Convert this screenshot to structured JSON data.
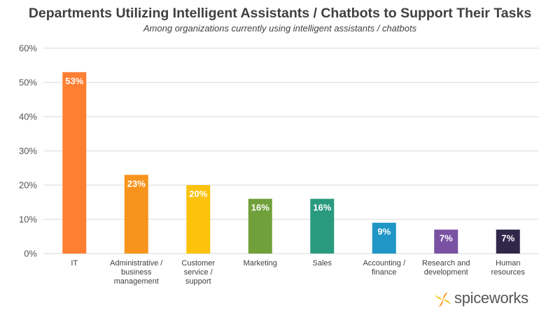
{
  "chart_data": {
    "type": "bar",
    "title": "Departments Utilizing Intelligent Assistants / Chatbots to Support Their Tasks",
    "subtitle": "Among organizations currently using intelligent assistants / chatbots",
    "categories": [
      [
        "IT"
      ],
      [
        "Administrative /",
        "business",
        "management"
      ],
      [
        "Customer",
        "service /",
        "support"
      ],
      [
        "Marketing"
      ],
      [
        "Sales"
      ],
      [
        "Accounting /",
        "finance"
      ],
      [
        "Research and",
        "development"
      ],
      [
        "Human",
        "resources"
      ]
    ],
    "values": [
      53,
      23,
      20,
      16,
      16,
      9,
      7,
      7
    ],
    "data_labels": [
      "53%",
      "23%",
      "20%",
      "16%",
      "16%",
      "9%",
      "7%",
      "7%"
    ],
    "colors": [
      "#ff7f32",
      "#f7941d",
      "#fcc20c",
      "#70a03a",
      "#2a9a7e",
      "#1f96c5",
      "#7b52a3",
      "#312749"
    ],
    "ylim": [
      0,
      60
    ],
    "yticks": [
      0,
      10,
      20,
      30,
      40,
      50,
      60
    ],
    "ytick_labels": [
      "0%",
      "10%",
      "20%",
      "30%",
      "40%",
      "50%",
      "60%"
    ],
    "grid": true,
    "xlabel": "",
    "ylabel": ""
  },
  "logo": {
    "text": "spiceworks",
    "colors": [
      "#f7941d",
      "#ffc20e"
    ]
  }
}
